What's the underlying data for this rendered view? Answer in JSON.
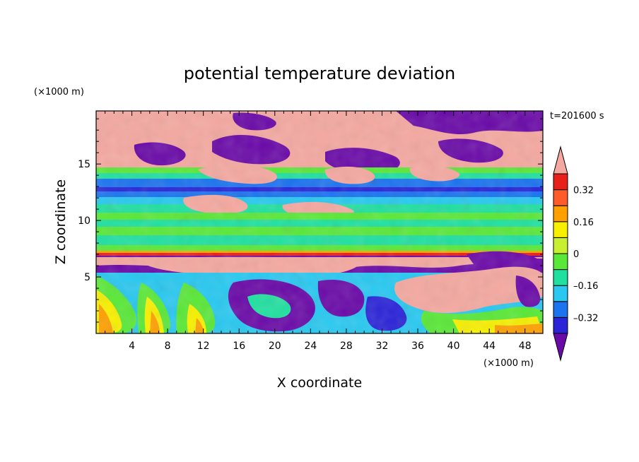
{
  "chart_data": {
    "type": "heatmap",
    "title": "potential temperature deviation",
    "xlabel": "X coordinate",
    "ylabel": "Z coordinate",
    "x_unit": "(×1000 m)",
    "y_unit": "(×1000 m)",
    "time_label": "t=201600 s",
    "xlim": [
      0,
      50
    ],
    "ylim": [
      0,
      19.7
    ],
    "x_ticks": [
      4,
      8,
      12,
      16,
      20,
      24,
      28,
      32,
      36,
      40,
      44,
      48
    ],
    "y_ticks": [
      5,
      10,
      15
    ],
    "colorbar": {
      "levels": [
        -0.4,
        -0.32,
        -0.24,
        -0.16,
        -0.08,
        0,
        0.08,
        0.16,
        0.24,
        0.32,
        0.4
      ],
      "labeled_levels": [
        "0.32",
        "0.16",
        "0",
        "–0.16",
        "–0.32"
      ],
      "colors": [
        "#6a0aa8",
        "#2a23d8",
        "#1b73f0",
        "#28c8f0",
        "#20e0a0",
        "#5ae838",
        "#c8f030",
        "#f8f000",
        "#ffa000",
        "#ff5a2a",
        "#e8201c",
        "#f4a8a0"
      ],
      "extend": "both"
    },
    "layers": [
      {
        "zmin": 0,
        "zmax": 5.3,
        "description_level": "mixed"
      },
      {
        "zmin": 5.3,
        "zmax": 7.0,
        "level": -0.4
      },
      {
        "zmin": 7.0,
        "zmax": 7.5,
        "level": 0.32
      },
      {
        "zmin": 7.5,
        "zmax": 12.0,
        "level": 0.0
      },
      {
        "zmin": 12.0,
        "zmax": 14.0,
        "level": -0.16
      },
      {
        "zmin": 14.0,
        "zmax": 19.7,
        "level": 0.4
      }
    ]
  }
}
